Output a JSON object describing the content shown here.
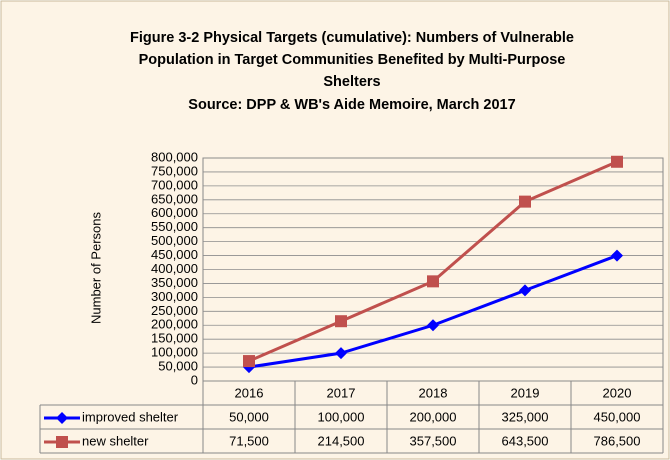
{
  "chart_data": {
    "type": "line",
    "title": [
      "Figure 3-2 Physical Targets (cumulative): Numbers of Vulnerable",
      "Population in Target Communities Benefited by Multi-Purpose",
      "Shelters"
    ],
    "subtitle": "Source: DPP & WB's Aide Memoire, March 2017",
    "y_label": "Number of Persons",
    "categories": [
      "2016",
      "2017",
      "2018",
      "2019",
      "2020"
    ],
    "series": [
      {
        "name": "improved shelter",
        "color": "#0000ff",
        "marker": "diamond",
        "values": [
          50000,
          100000,
          200000,
          325000,
          450000
        ],
        "value_labels": [
          "50,000",
          "100,000",
          "200,000",
          "325,000",
          "450,000"
        ]
      },
      {
        "name": "new shelter",
        "color": "#c0504d",
        "marker": "square",
        "values": [
          71500,
          214500,
          357500,
          643500,
          786500
        ],
        "value_labels": [
          "71,500",
          "214,500",
          "357,500",
          "643,500",
          "786,500"
        ]
      }
    ],
    "ylim": [
      0,
      800000
    ],
    "yticks": [
      0,
      {
        "value": 50000,
        "label": "50,000"
      },
      {
        "value": 100000,
        "label": "100,000"
      },
      {
        "value": 150000,
        "label": "150,000"
      },
      {
        "value": 200000,
        "label": "200,000"
      },
      {
        "value": 250000,
        "label": "250,000"
      },
      {
        "value": 300000,
        "label": "300,000"
      },
      {
        "value": 350000,
        "label": "350,000"
      },
      {
        "value": 400000,
        "label": "400,000"
      },
      {
        "value": 450000,
        "label": "450,000"
      },
      {
        "value": 500000,
        "label": "500,000"
      },
      {
        "value": 550000,
        "label": "550,000"
      },
      {
        "value": 600000,
        "label": "600,000"
      },
      {
        "value": 650000,
        "label": "650,000"
      },
      {
        "value": 700000,
        "label": "700,000"
      },
      {
        "value": 750000,
        "label": "750,000"
      },
      {
        "value": 800000,
        "label": "800,000"
      }
    ],
    "grid": true,
    "data_table": true
  }
}
